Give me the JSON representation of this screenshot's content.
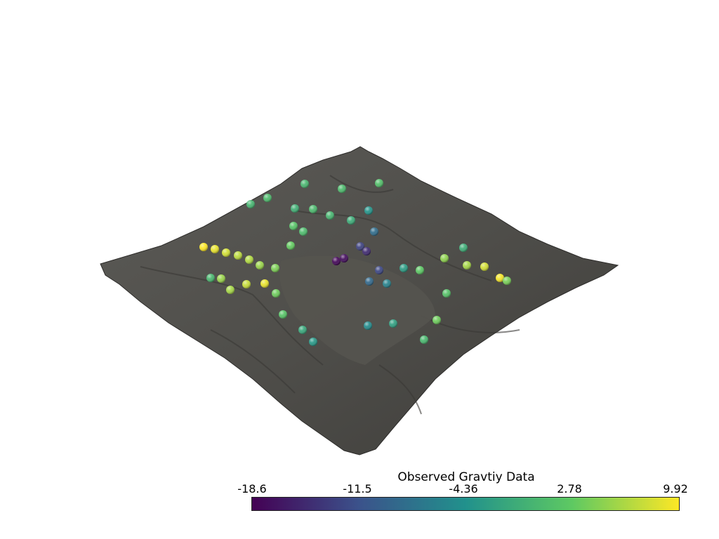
{
  "colorbar": {
    "title": "Observed Gravtiy Data",
    "ticks": [
      "-18.6",
      "-11.5",
      "-4.36",
      "2.78",
      "9.92"
    ],
    "range": [
      -18.6,
      9.92
    ],
    "colormap": [
      "#440154",
      "#3b528b",
      "#21918c",
      "#5ec962",
      "#fde725"
    ]
  },
  "terrain": {
    "color": "#4f4e4a"
  },
  "stations": [
    {
      "v": 0.4
    },
    {
      "v": 0.9
    },
    {
      "v": 1.5
    },
    {
      "v": 0.2
    },
    {
      "v": 1.0
    },
    {
      "v": -0.5
    },
    {
      "v": 0.8
    },
    {
      "v": 0.3
    },
    {
      "v": -1.0
    },
    {
      "v": -4.0
    },
    {
      "v": -8.5
    },
    {
      "v": -13.0
    },
    {
      "v": -17.5
    },
    {
      "v": -18.2
    },
    {
      "v": -15.0
    },
    {
      "v": -12.5
    },
    {
      "v": -9.0
    },
    {
      "v": -6.0
    },
    {
      "v": -3.0
    },
    {
      "v": 2.5
    },
    {
      "v": 5.0
    },
    {
      "v": 9.9
    },
    {
      "v": 9.0
    },
    {
      "v": 8.0
    },
    {
      "v": 7.0
    },
    {
      "v": 6.5
    },
    {
      "v": 5.5
    },
    {
      "v": 4.2
    },
    {
      "v": 3.0
    },
    {
      "v": 2.0
    },
    {
      "v": 1.0
    },
    {
      "v": 0.5
    },
    {
      "v": 5.5
    },
    {
      "v": 6.0
    },
    {
      "v": 7.5
    },
    {
      "v": 9.0
    },
    {
      "v": 3.5
    },
    {
      "v": 2.0
    },
    {
      "v": -1.5
    },
    {
      "v": -3.5
    },
    {
      "v": -5.0
    },
    {
      "v": -2.5
    },
    {
      "v": 0.5
    },
    {
      "v": 3.5
    },
    {
      "v": 6.0
    },
    {
      "v": 8.0
    },
    {
      "v": 9.5
    },
    {
      "v": 4.0
    },
    {
      "v": 1.8
    },
    {
      "v": -0.8
    }
  ]
}
